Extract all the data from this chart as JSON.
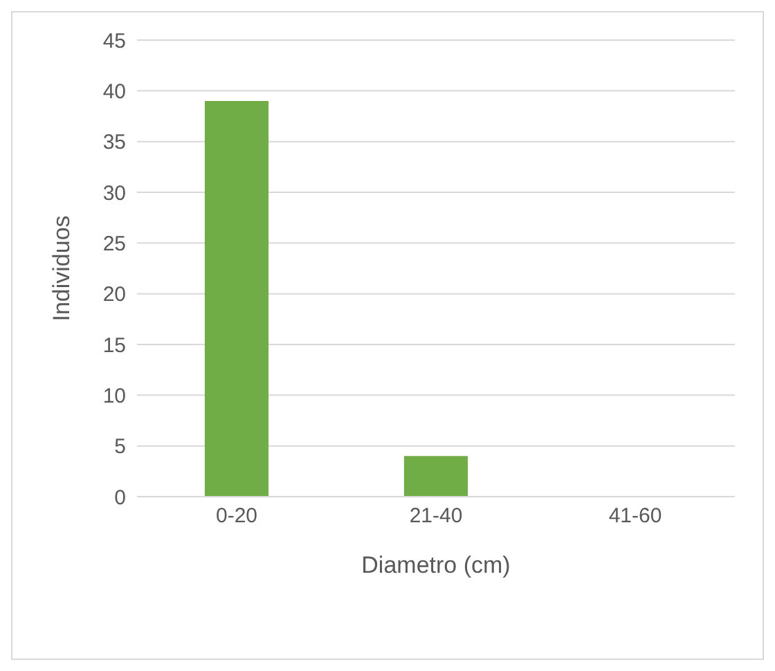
{
  "chart_data": {
    "type": "bar",
    "xlabel": "Diametro (cm)",
    "ylabel": "Individuos",
    "categories": [
      "0-20",
      "21-40",
      "41-60"
    ],
    "series": [
      {
        "color": "#70ad47",
        "values": [
          39,
          4,
          0
        ]
      }
    ],
    "ylim": [
      0,
      45
    ],
    "yticks": [
      0,
      5,
      10,
      15,
      20,
      25,
      30,
      35,
      40,
      45
    ],
    "grid": "y",
    "legend": false
  }
}
